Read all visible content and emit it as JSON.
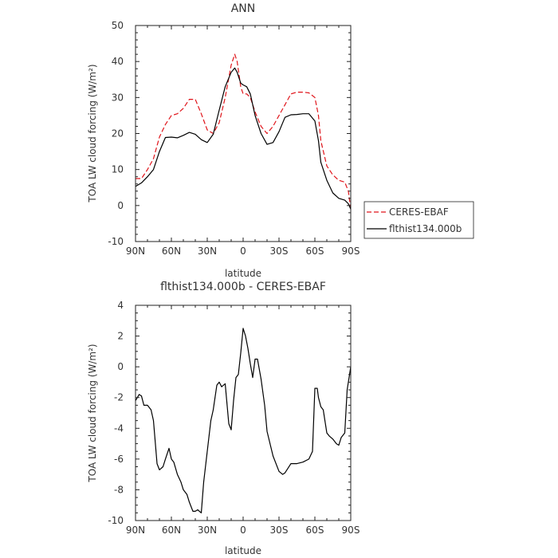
{
  "chart_data": [
    {
      "type": "line",
      "title": "ANN",
      "xlabel": "latitude",
      "ylabel": "TOA LW cloud forcing (W/m²)",
      "xlim": [
        -90,
        90
      ],
      "ylim": [
        -10,
        50
      ],
      "x_ticks": [
        -90,
        -60,
        -30,
        0,
        30,
        60,
        90
      ],
      "x_tick_labels": [
        "90N",
        "60N",
        "30N",
        "0",
        "30S",
        "60S",
        "90S"
      ],
      "y_ticks": [
        -10,
        0,
        10,
        20,
        30,
        40,
        50
      ],
      "y_tick_labels": [
        "-10",
        "0",
        "10",
        "20",
        "30",
        "40",
        "50"
      ],
      "legend_position": "outside-right",
      "x": [
        -90,
        -85,
        -80,
        -75,
        -70,
        -65,
        -60,
        -55,
        -50,
        -45,
        -40,
        -35,
        -30,
        -25,
        -20,
        -15,
        -10,
        -7,
        -5,
        -2,
        0,
        3,
        6,
        10,
        15,
        20,
        25,
        30,
        35,
        40,
        45,
        50,
        55,
        60,
        63,
        65,
        70,
        75,
        80,
        85,
        88,
        90
      ],
      "series": [
        {
          "name": "CERES-EBAF",
          "color": "#e0141a",
          "dash": "dashed",
          "values": [
            7.5,
            7.5,
            10,
            13,
            19,
            22.5,
            25,
            25.5,
            27,
            29.5,
            29.5,
            25.5,
            21,
            20,
            23,
            30,
            39,
            42,
            40,
            33,
            31,
            31,
            30,
            26,
            22,
            20,
            22,
            25,
            28,
            31,
            31.5,
            31.5,
            31.3,
            30,
            25,
            18,
            11,
            8.5,
            7,
            6.5,
            4,
            -1
          ]
        },
        {
          "name": "flthist134.000b",
          "color": "#000000",
          "dash": "solid",
          "values": [
            5.3,
            6.3,
            8,
            10,
            15,
            18.9,
            19,
            18.8,
            19.5,
            20.3,
            19.8,
            18.3,
            17.5,
            19.8,
            26.5,
            33,
            37,
            38.2,
            37,
            34,
            33.5,
            33,
            31,
            25,
            20,
            17,
            17.5,
            20.5,
            24.5,
            25.2,
            25.3,
            25.5,
            25.5,
            23.5,
            18,
            12,
            7,
            3.5,
            2,
            1.5,
            0.5,
            -1
          ]
        }
      ]
    },
    {
      "type": "line",
      "title": "flthist134.000b - CERES-EBAF",
      "xlabel": "latitude",
      "ylabel": "TOA LW cloud forcing (W/m²)",
      "xlim": [
        -90,
        90
      ],
      "ylim": [
        -10,
        4
      ],
      "x_ticks": [
        -90,
        -60,
        -30,
        0,
        30,
        60,
        90
      ],
      "x_tick_labels": [
        "90N",
        "60N",
        "30N",
        "0",
        "30S",
        "60S",
        "90S"
      ],
      "y_ticks": [
        -10,
        -8,
        -6,
        -4,
        -2,
        0,
        2,
        4
      ],
      "y_tick_labels": [
        "-10",
        "-8",
        "-6",
        "-4",
        "-2",
        "0",
        "2",
        "4"
      ],
      "x": [
        -90,
        -87,
        -85,
        -83,
        -80,
        -77,
        -75,
        -72,
        -70,
        -67,
        -65,
        -62,
        -60,
        -58,
        -55,
        -52,
        -50,
        -47,
        -45,
        -42,
        -40,
        -38,
        -35,
        -33,
        -30,
        -27,
        -25,
        -22,
        -20,
        -18,
        -15,
        -12,
        -10,
        -8,
        -6,
        -4,
        -2,
        0,
        2,
        4,
        6,
        8,
        10,
        12,
        15,
        18,
        20,
        25,
        30,
        33,
        35,
        40,
        45,
        50,
        55,
        58,
        60,
        62,
        63,
        65,
        67,
        70,
        72,
        75,
        78,
        80,
        82,
        85,
        87,
        90
      ],
      "series": [
        {
          "name": "",
          "color": "#000000",
          "dash": "solid",
          "values": [
            -2.2,
            -1.8,
            -1.9,
            -2.5,
            -2.5,
            -2.8,
            -3.5,
            -6.3,
            -6.7,
            -6.5,
            -6,
            -5.3,
            -6,
            -6.2,
            -7,
            -7.5,
            -8,
            -8.3,
            -8.8,
            -9.4,
            -9.4,
            -9.3,
            -9.5,
            -7.5,
            -5.5,
            -3.5,
            -2.8,
            -1.2,
            -1,
            -1.3,
            -1.1,
            -3.7,
            -4.1,
            -2.2,
            -0.7,
            -0.5,
            0.9,
            2.5,
            2,
            1.2,
            0.2,
            -0.7,
            0.5,
            0.5,
            -0.8,
            -2.5,
            -4.2,
            -5.8,
            -6.8,
            -7,
            -6.9,
            -6.3,
            -6.3,
            -6.2,
            -6,
            -5.5,
            -1.4,
            -1.4,
            -2,
            -2.6,
            -2.8,
            -4.3,
            -4.5,
            -4.7,
            -5,
            -5.1,
            -4.6,
            -4.3,
            -1.5,
            0
          ]
        }
      ]
    }
  ]
}
